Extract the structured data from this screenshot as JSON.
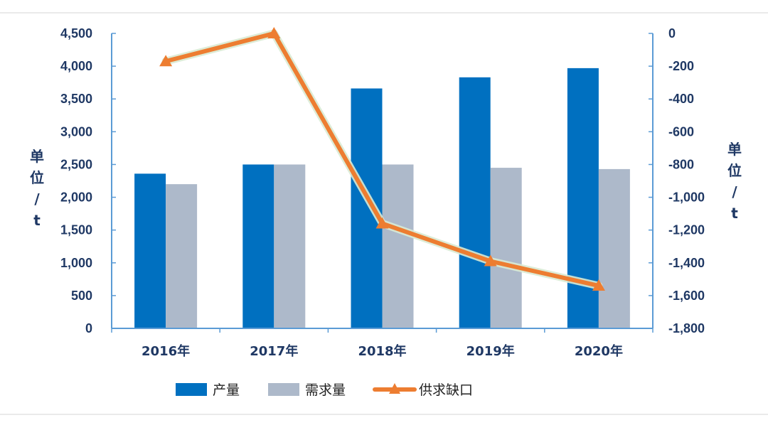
{
  "chart_data": {
    "type": "bar",
    "categories": [
      "2016年",
      "2017年",
      "2018年",
      "2019年",
      "2020年"
    ],
    "series": [
      {
        "name": "产量",
        "type": "bar",
        "axis": "left",
        "values": [
          2360,
          2500,
          3660,
          3830,
          3970
        ],
        "color": "#0070c0"
      },
      {
        "name": "需求量",
        "type": "bar",
        "axis": "left",
        "values": [
          2200,
          2500,
          2500,
          2450,
          2430
        ],
        "color": "#adb9ca"
      },
      {
        "name": "供求缺口",
        "type": "line",
        "axis": "right",
        "values": [
          -170,
          0,
          -1160,
          -1390,
          -1540
        ],
        "color": "#ed7d31",
        "marker": "triangle"
      }
    ],
    "ylim_left": [
      0,
      4500
    ],
    "ylim_right": [
      -1800,
      0
    ],
    "yticks_left": [
      "0",
      "500",
      "1,000",
      "1,500",
      "2,000",
      "2,500",
      "3,000",
      "3,500",
      "4,000",
      "4,500"
    ],
    "yticks_right": [
      "-1,800",
      "-1,600",
      "-1,400",
      "-1,200",
      "-1,000",
      "-800",
      "-600",
      "-400",
      "-200",
      "0"
    ],
    "ylabel_left": [
      "单",
      "位",
      "/",
      "t"
    ],
    "ylabel_right": [
      "单",
      "位",
      "/",
      "t"
    ],
    "axis_color": "#5b9bd5",
    "legend_position": "bottom-center",
    "grid": false
  }
}
